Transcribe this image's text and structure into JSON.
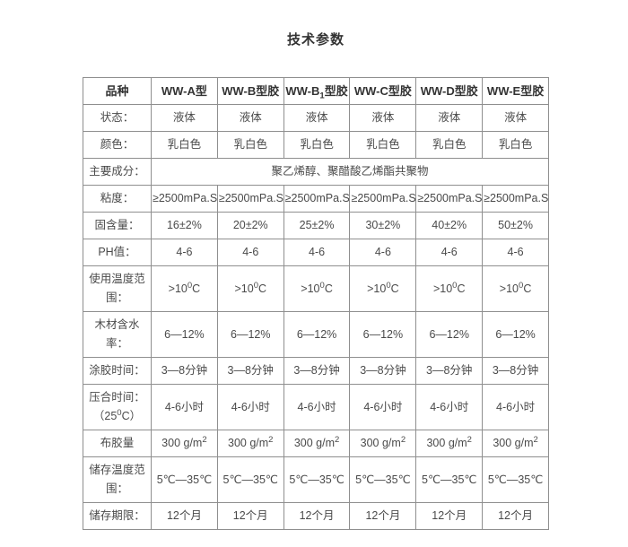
{
  "page": {
    "title": "技术参数"
  },
  "colors": {
    "text": "#4a4a4a",
    "header_text": "#333333",
    "inner_border": "#8f8f8f",
    "outer_border": "#2f2f2f",
    "background": "#ffffff"
  },
  "table": {
    "header": [
      "品种",
      "WW-A型",
      "WW-B型胶",
      "WW-B_{1}型胶",
      "WW-C型胶",
      "WW-D型胶",
      "WW-E型胶"
    ],
    "rows": [
      {
        "label": "状态：",
        "cells": [
          "液体",
          "液体",
          "液体",
          "液体",
          "液体",
          "液体"
        ]
      },
      {
        "label": "颜色：",
        "cells": [
          "乳白色",
          "乳白色",
          "乳白色",
          "乳白色",
          "乳白色",
          "乳白色"
        ]
      },
      {
        "label": "主要成分：",
        "span": 6,
        "cells": [
          "聚乙烯醇、聚醋酸乙烯酯共聚物"
        ]
      },
      {
        "label": "粘度：",
        "cells": [
          "≥2500mPa.S",
          "≥2500mPa.S",
          "≥2500mPa.S",
          "≥2500mPa.S",
          "≥2500mPa.S",
          "≥2500mPa.S"
        ]
      },
      {
        "label": "固含量：",
        "cells": [
          "16±2%",
          "20±2%",
          "25±2%",
          "30±2%",
          "40±2%",
          "50±2%"
        ]
      },
      {
        "label": "PH值：",
        "cells": [
          "4-6",
          "4-6",
          "4-6",
          "4-6",
          "4-6",
          "4-6"
        ]
      },
      {
        "label": "使用温度范围：",
        "cells": [
          ">10^{0}C",
          ">10^{0}C",
          ">10^{0}C",
          ">10^{0}C",
          ">10^{0}C",
          ">10^{0}C"
        ]
      },
      {
        "label": "木材含水率：",
        "cells": [
          "6—12%",
          "6—12%",
          "6—12%",
          "6—12%",
          "6—12%",
          "6—12%"
        ]
      },
      {
        "label": "涂胶时间：",
        "cells": [
          "3—8分钟",
          "3—8分钟",
          "3—8分钟",
          "3—8分钟",
          "3—8分钟",
          "3—8分钟"
        ]
      },
      {
        "label": "压合时间：（25^{0}C）",
        "cells": [
          "4-6小时",
          "4-6小时",
          "4-6小时",
          "4-6小时",
          "4-6小时",
          "4-6小时"
        ]
      },
      {
        "label": "布胶量",
        "cells": [
          "300 g/m^{2}",
          "300 g/m^{2}",
          "300 g/m^{2}",
          "300 g/m^{2}",
          "300 g/m^{2}",
          "300 g/m^{2}"
        ]
      },
      {
        "label": "储存温度范围：",
        "cells": [
          "5℃—35℃",
          "5℃—35℃",
          "5℃—35℃",
          "5℃—35℃",
          "5℃—35℃",
          "5℃—35℃"
        ]
      },
      {
        "label": "储存期限：",
        "cells": [
          "12个月",
          "12个月",
          "12个月",
          "12个月",
          "12个月",
          "12个月"
        ]
      }
    ]
  }
}
